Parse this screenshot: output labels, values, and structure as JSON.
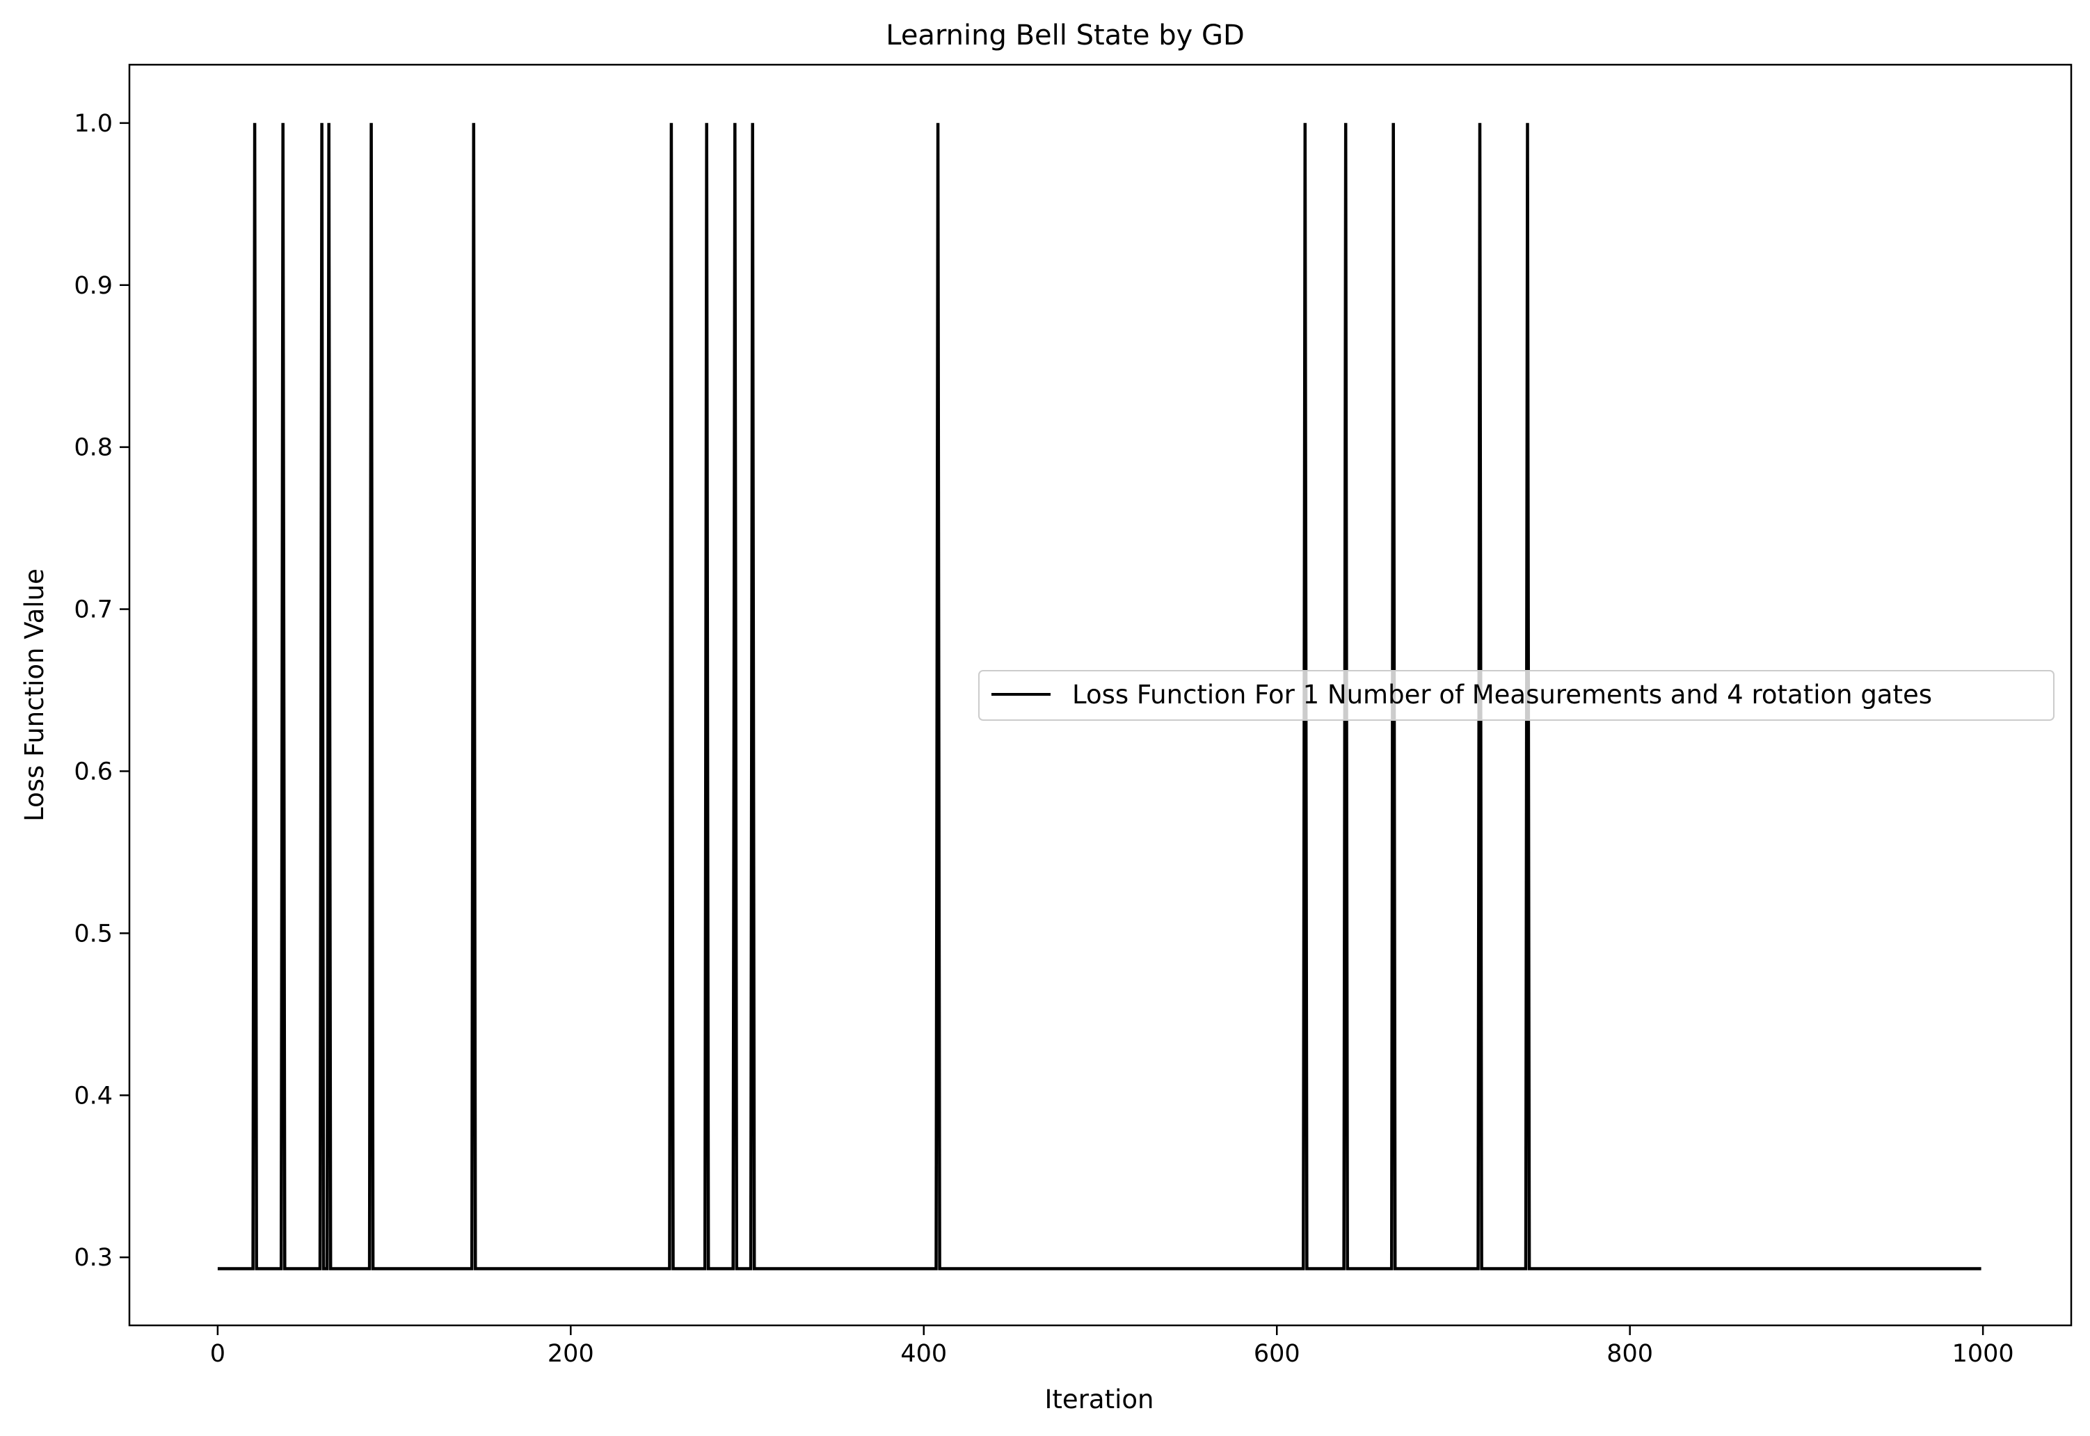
{
  "chart_data": {
    "type": "line",
    "title": "Learning Bell State by GD",
    "xlabel": "Iteration",
    "ylabel": "Loss Function Value",
    "xlim": [
      -50,
      1050
    ],
    "ylim": [
      0.258,
      1.036
    ],
    "x_ticks": [
      0,
      200,
      400,
      600,
      800,
      1000
    ],
    "x_tick_labels": [
      "0",
      "200",
      "400",
      "600",
      "800",
      "1000"
    ],
    "y_ticks": [
      0.3,
      0.4,
      0.5,
      0.6,
      0.7,
      0.8,
      0.9,
      1.0
    ],
    "y_tick_labels": [
      "0.3",
      "0.4",
      "0.5",
      "0.6",
      "0.7",
      "0.8",
      "0.9",
      "1.0"
    ],
    "grid": false,
    "legend_position": "center-right",
    "series": [
      {
        "name": "Loss Function For 1 Number of Measurements and 4 rotation gates",
        "color": "#000000",
        "baseline": 0.293,
        "peak_value": 1.0,
        "x_range": [
          0,
          999
        ],
        "spike_iterations": [
          21,
          37,
          59,
          63,
          87,
          145,
          257,
          277,
          293,
          303,
          408,
          616,
          639,
          666,
          715,
          742
        ]
      }
    ]
  }
}
